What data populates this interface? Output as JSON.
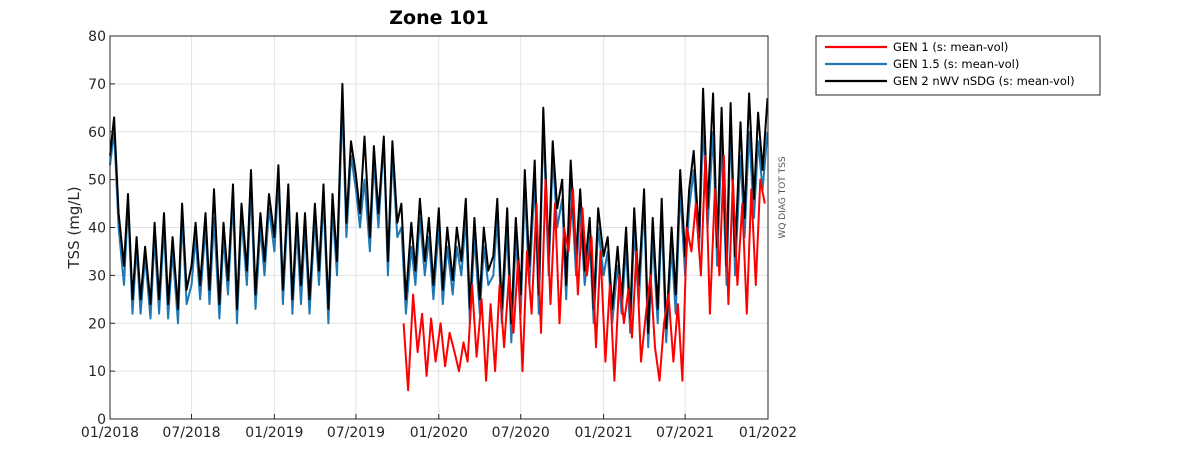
{
  "chart_data": {
    "type": "line",
    "title": "Zone 101",
    "ylabel": "TSS (mg/L)",
    "side_label": "WQ DIAG TOT TSS",
    "ylim": [
      0,
      80
    ],
    "yticks": [
      0,
      10,
      20,
      30,
      40,
      50,
      60,
      70,
      80
    ],
    "xlim": [
      "2018-01-01",
      "2022-01-01"
    ],
    "xticks": [
      {
        "date": "2018-01-01",
        "label": "01/2018"
      },
      {
        "date": "2018-07-01",
        "label": "07/2018"
      },
      {
        "date": "2019-01-01",
        "label": "01/2019"
      },
      {
        "date": "2019-07-01",
        "label": "07/2019"
      },
      {
        "date": "2020-01-01",
        "label": "01/2020"
      },
      {
        "date": "2020-07-01",
        "label": "07/2020"
      },
      {
        "date": "2021-01-01",
        "label": "01/2021"
      },
      {
        "date": "2021-07-01",
        "label": "07/2021"
      },
      {
        "date": "2022-01-01",
        "label": "01/2022"
      }
    ],
    "grid": true,
    "legend_position": "outside-top-right",
    "series": [
      {
        "name": "GEN 1 (s: mean-vol)",
        "color": "#ff0000",
        "x": [
          "2019-10-15",
          "2019-10-25",
          "2019-11-05",
          "2019-11-15",
          "2019-11-25",
          "2019-12-05",
          "2019-12-15",
          "2019-12-25",
          "2020-01-05",
          "2020-01-15",
          "2020-01-25",
          "2020-02-05",
          "2020-02-15",
          "2020-02-25",
          "2020-03-05",
          "2020-03-15",
          "2020-03-25",
          "2020-04-05",
          "2020-04-15",
          "2020-04-25",
          "2020-05-05",
          "2020-05-15",
          "2020-05-25",
          "2020-06-05",
          "2020-06-15",
          "2020-06-25",
          "2020-07-05",
          "2020-07-15",
          "2020-07-25",
          "2020-08-05",
          "2020-08-15",
          "2020-08-25",
          "2020-09-05",
          "2020-09-15",
          "2020-09-25",
          "2020-10-05",
          "2020-10-15",
          "2020-10-25",
          "2020-11-05",
          "2020-11-15",
          "2020-11-25",
          "2020-12-05",
          "2020-12-15",
          "2020-12-25",
          "2021-01-05",
          "2021-01-15",
          "2021-01-25",
          "2021-02-05",
          "2021-02-15",
          "2021-02-25",
          "2021-03-05",
          "2021-03-15",
          "2021-03-25",
          "2021-04-05",
          "2021-04-15",
          "2021-04-25",
          "2021-05-05",
          "2021-05-15",
          "2021-05-25",
          "2021-06-05",
          "2021-06-15",
          "2021-06-25",
          "2021-07-05",
          "2021-07-15",
          "2021-07-25",
          "2021-08-05",
          "2021-08-15",
          "2021-08-25",
          "2021-09-05",
          "2021-09-15",
          "2021-09-25",
          "2021-10-05",
          "2021-10-15",
          "2021-10-25",
          "2021-11-05",
          "2021-11-15",
          "2021-11-25",
          "2021-12-05",
          "2021-12-15",
          "2021-12-25"
        ],
        "y": [
          20,
          6,
          26,
          14,
          22,
          9,
          21,
          12,
          20,
          11,
          18,
          14,
          10,
          16,
          12,
          28,
          13,
          25,
          8,
          24,
          10,
          28,
          15,
          30,
          18,
          33,
          10,
          35,
          22,
          45,
          18,
          50,
          24,
          45,
          20,
          40,
          35,
          48,
          26,
          44,
          30,
          38,
          15,
          35,
          12,
          28,
          8,
          30,
          20,
          27,
          17,
          35,
          12,
          22,
          30,
          15,
          8,
          20,
          26,
          12,
          24,
          8,
          40,
          35,
          45,
          30,
          55,
          22,
          48,
          30,
          55,
          24,
          50,
          28,
          45,
          22,
          48,
          28,
          50,
          45
        ]
      },
      {
        "name": "GEN 1.5 (s: mean-vol)",
        "color": "#1f77b4",
        "x": [
          "2018-01-01",
          "2018-01-10",
          "2018-01-20",
          "2018-02-01",
          "2018-02-10",
          "2018-02-20",
          "2018-03-01",
          "2018-03-10",
          "2018-03-20",
          "2018-04-01",
          "2018-04-10",
          "2018-04-20",
          "2018-05-01",
          "2018-05-10",
          "2018-05-20",
          "2018-06-01",
          "2018-06-10",
          "2018-06-20",
          "2018-07-01",
          "2018-07-10",
          "2018-07-20",
          "2018-08-01",
          "2018-08-10",
          "2018-08-20",
          "2018-09-01",
          "2018-09-10",
          "2018-09-20",
          "2018-10-01",
          "2018-10-10",
          "2018-10-20",
          "2018-11-01",
          "2018-11-10",
          "2018-11-20",
          "2018-12-01",
          "2018-12-10",
          "2018-12-20",
          "2019-01-01",
          "2019-01-10",
          "2019-01-20",
          "2019-02-01",
          "2019-02-10",
          "2019-02-20",
          "2019-03-01",
          "2019-03-10",
          "2019-03-20",
          "2019-04-01",
          "2019-04-10",
          "2019-04-20",
          "2019-05-01",
          "2019-05-10",
          "2019-05-20",
          "2019-06-01",
          "2019-06-10",
          "2019-06-20",
          "2019-07-01",
          "2019-07-10",
          "2019-07-20",
          "2019-08-01",
          "2019-08-10",
          "2019-08-20",
          "2019-09-01",
          "2019-09-10",
          "2019-09-20",
          "2019-10-01",
          "2019-10-10",
          "2019-10-20",
          "2019-11-01",
          "2019-11-10",
          "2019-11-20",
          "2019-12-01",
          "2019-12-10",
          "2019-12-20",
          "2020-01-01",
          "2020-01-10",
          "2020-01-20",
          "2020-02-01",
          "2020-02-10",
          "2020-02-20",
          "2020-03-01",
          "2020-03-10",
          "2020-03-20",
          "2020-04-01",
          "2020-04-10",
          "2020-04-20",
          "2020-05-01",
          "2020-05-10",
          "2020-05-20",
          "2020-06-01",
          "2020-06-10",
          "2020-06-20",
          "2020-07-01",
          "2020-07-10",
          "2020-07-20",
          "2020-08-01",
          "2020-08-10",
          "2020-08-20",
          "2020-09-01",
          "2020-09-10",
          "2020-09-20",
          "2020-10-01",
          "2020-10-10",
          "2020-10-20",
          "2020-11-01",
          "2020-11-10",
          "2020-11-20",
          "2020-12-01",
          "2020-12-10",
          "2020-12-20",
          "2021-01-01",
          "2021-01-10",
          "2021-01-20",
          "2021-02-01",
          "2021-02-10",
          "2021-02-20",
          "2021-03-01",
          "2021-03-10",
          "2021-03-20",
          "2021-04-01",
          "2021-04-10",
          "2021-04-20",
          "2021-05-01",
          "2021-05-10",
          "2021-05-20",
          "2021-06-01",
          "2021-06-10",
          "2021-06-20",
          "2021-07-01",
          "2021-07-10",
          "2021-07-20",
          "2021-08-01",
          "2021-08-10",
          "2021-08-20",
          "2021-09-01",
          "2021-09-10",
          "2021-09-20",
          "2021-10-01",
          "2021-10-10",
          "2021-10-20",
          "2021-11-01",
          "2021-11-10",
          "2021-11-20",
          "2021-12-01",
          "2021-12-10",
          "2021-12-20",
          "2021-12-31"
        ],
        "y": [
          53,
          60,
          40,
          28,
          45,
          22,
          36,
          22,
          34,
          21,
          38,
          22,
          40,
          21,
          35,
          20,
          42,
          24,
          28,
          38,
          25,
          40,
          24,
          42,
          21,
          38,
          26,
          46,
          20,
          42,
          28,
          48,
          23,
          40,
          30,
          44,
          35,
          50,
          24,
          46,
          22,
          40,
          24,
          40,
          22,
          42,
          28,
          46,
          20,
          44,
          30,
          66,
          38,
          55,
          48,
          40,
          50,
          35,
          54,
          40,
          58,
          30,
          55,
          38,
          40,
          22,
          36,
          28,
          42,
          30,
          38,
          25,
          40,
          24,
          36,
          26,
          36,
          30,
          42,
          20,
          38,
          22,
          36,
          28,
          30,
          42,
          20,
          40,
          16,
          38,
          22,
          48,
          28,
          50,
          22,
          62,
          30,
          55,
          40,
          46,
          25,
          50,
          30,
          44,
          28,
          38,
          20,
          40,
          30,
          35,
          20,
          32,
          22,
          36,
          18,
          40,
          24,
          45,
          15,
          38,
          20,
          42,
          16,
          36,
          22,
          48,
          30,
          44,
          52,
          35,
          62,
          40,
          60,
          32,
          58,
          28,
          62,
          30,
          55,
          38,
          60,
          42,
          58,
          48,
          60
        ]
      },
      {
        "name": "GEN 2 nWV nSDG (s: mean-vol)",
        "color": "#000000",
        "x": [
          "2018-01-01",
          "2018-01-10",
          "2018-01-20",
          "2018-02-01",
          "2018-02-10",
          "2018-02-20",
          "2018-03-01",
          "2018-03-10",
          "2018-03-20",
          "2018-04-01",
          "2018-04-10",
          "2018-04-20",
          "2018-05-01",
          "2018-05-10",
          "2018-05-20",
          "2018-06-01",
          "2018-06-10",
          "2018-06-20",
          "2018-07-01",
          "2018-07-10",
          "2018-07-20",
          "2018-08-01",
          "2018-08-10",
          "2018-08-20",
          "2018-09-01",
          "2018-09-10",
          "2018-09-20",
          "2018-10-01",
          "2018-10-10",
          "2018-10-20",
          "2018-11-01",
          "2018-11-10",
          "2018-11-20",
          "2018-12-01",
          "2018-12-10",
          "2018-12-20",
          "2019-01-01",
          "2019-01-10",
          "2019-01-20",
          "2019-02-01",
          "2019-02-10",
          "2019-02-20",
          "2019-03-01",
          "2019-03-10",
          "2019-03-20",
          "2019-04-01",
          "2019-04-10",
          "2019-04-20",
          "2019-05-01",
          "2019-05-10",
          "2019-05-20",
          "2019-06-01",
          "2019-06-10",
          "2019-06-20",
          "2019-07-01",
          "2019-07-10",
          "2019-07-20",
          "2019-08-01",
          "2019-08-10",
          "2019-08-20",
          "2019-09-01",
          "2019-09-10",
          "2019-09-20",
          "2019-10-01",
          "2019-10-10",
          "2019-10-20",
          "2019-11-01",
          "2019-11-10",
          "2019-11-20",
          "2019-12-01",
          "2019-12-10",
          "2019-12-20",
          "2020-01-01",
          "2020-01-10",
          "2020-01-20",
          "2020-02-01",
          "2020-02-10",
          "2020-02-20",
          "2020-03-01",
          "2020-03-10",
          "2020-03-20",
          "2020-04-01",
          "2020-04-10",
          "2020-04-20",
          "2020-05-01",
          "2020-05-10",
          "2020-05-20",
          "2020-06-01",
          "2020-06-10",
          "2020-06-20",
          "2020-07-01",
          "2020-07-10",
          "2020-07-20",
          "2020-08-01",
          "2020-08-10",
          "2020-08-20",
          "2020-09-01",
          "2020-09-10",
          "2020-09-20",
          "2020-10-01",
          "2020-10-10",
          "2020-10-20",
          "2020-11-01",
          "2020-11-10",
          "2020-11-20",
          "2020-12-01",
          "2020-12-10",
          "2020-12-20",
          "2021-01-01",
          "2021-01-10",
          "2021-01-20",
          "2021-02-01",
          "2021-02-10",
          "2021-02-20",
          "2021-03-01",
          "2021-03-10",
          "2021-03-20",
          "2021-04-01",
          "2021-04-10",
          "2021-04-20",
          "2021-05-01",
          "2021-05-10",
          "2021-05-20",
          "2021-06-01",
          "2021-06-10",
          "2021-06-20",
          "2021-07-01",
          "2021-07-10",
          "2021-07-20",
          "2021-08-01",
          "2021-08-10",
          "2021-08-20",
          "2021-09-01",
          "2021-09-10",
          "2021-09-20",
          "2021-10-01",
          "2021-10-10",
          "2021-10-20",
          "2021-11-01",
          "2021-11-10",
          "2021-11-20",
          "2021-12-01",
          "2021-12-10",
          "2021-12-20",
          "2021-12-31"
        ],
        "y": [
          55,
          63,
          43,
          32,
          47,
          25,
          38,
          25,
          36,
          24,
          41,
          25,
          43,
          24,
          38,
          23,
          45,
          27,
          32,
          41,
          28,
          43,
          27,
          48,
          24,
          41,
          29,
          49,
          23,
          45,
          31,
          52,
          26,
          43,
          33,
          47,
          38,
          53,
          27,
          49,
          25,
          43,
          28,
          43,
          25,
          45,
          31,
          49,
          23,
          47,
          33,
          70,
          41,
          58,
          51,
          43,
          59,
          38,
          57,
          43,
          59,
          33,
          58,
          41,
          45,
          25,
          41,
          31,
          46,
          33,
          42,
          28,
          44,
          27,
          40,
          29,
          40,
          33,
          46,
          23,
          42,
          25,
          40,
          31,
          34,
          46,
          23,
          44,
          20,
          42,
          26,
          52,
          32,
          54,
          26,
          65,
          34,
          58,
          44,
          50,
          28,
          54,
          34,
          48,
          31,
          42,
          23,
          44,
          34,
          38,
          23,
          36,
          25,
          40,
          21,
          44,
          28,
          48,
          18,
          42,
          23,
          46,
          19,
          40,
          26,
          52,
          34,
          48,
          56,
          38,
          69,
          44,
          68,
          36,
          65,
          32,
          66,
          34,
          62,
          42,
          68,
          46,
          64,
          52,
          67
        ]
      }
    ]
  }
}
